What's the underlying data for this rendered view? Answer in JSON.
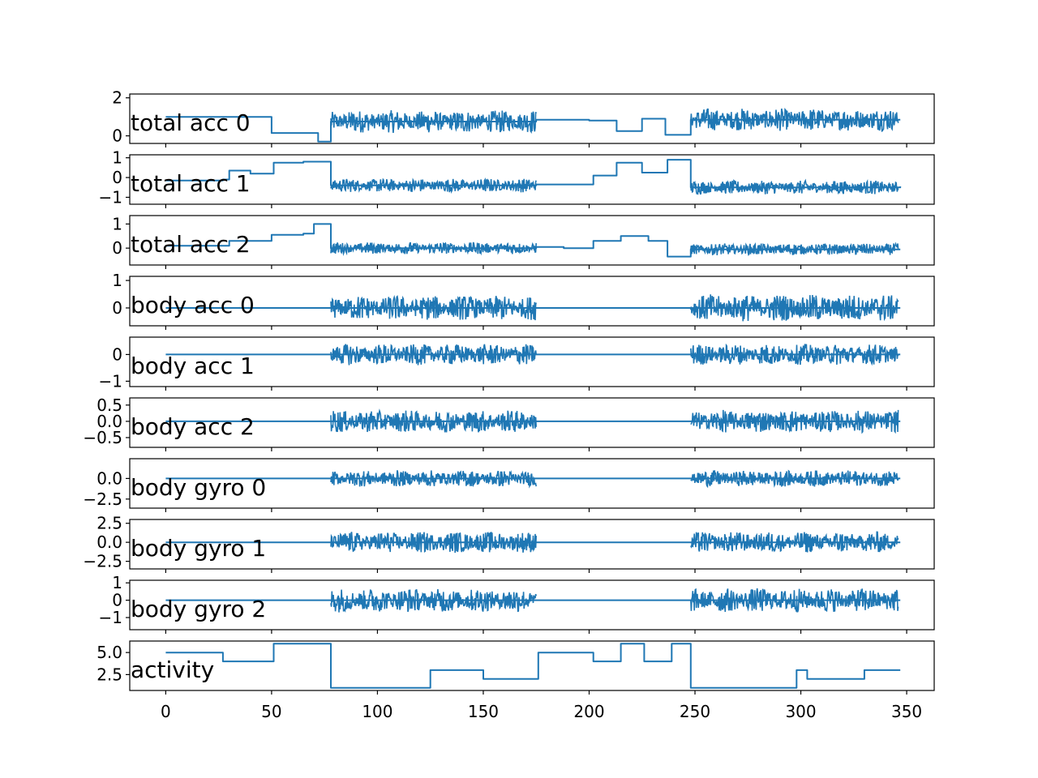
{
  "chart_data": {
    "type": "line",
    "title": "",
    "xlabel": "",
    "xlim": [
      -17,
      363
    ],
    "x_ticks": [
      0,
      50,
      100,
      150,
      200,
      250,
      300,
      350
    ],
    "x_tick_labels": [
      "0",
      "50",
      "100",
      "150",
      "200",
      "250",
      "300",
      "350"
    ],
    "color": "#1f77b4",
    "panels": [
      {
        "name": "total acc 0",
        "ylim": [
          -0.4,
          2.2
        ],
        "y_ticks": [
          0,
          2
        ],
        "y_tick_labels": [
          "0",
          "2"
        ],
        "levels": [
          [
            0,
            1.0
          ],
          [
            50,
            0.15
          ],
          [
            63,
            0.15
          ],
          [
            72,
            -0.3
          ],
          [
            78,
            0.75
          ],
          [
            175,
            0.85
          ],
          [
            200,
            0.8
          ],
          [
            213,
            0.25
          ],
          [
            225,
            0.9
          ],
          [
            236,
            0.05
          ],
          [
            248,
            0.85
          ],
          [
            347,
            0.85
          ]
        ],
        "noise_segments": [
          [
            78,
            175,
            0.6
          ],
          [
            248,
            346,
            0.6
          ]
        ]
      },
      {
        "name": "total acc 1",
        "ylim": [
          -1.35,
          1.15
        ],
        "y_ticks": [
          -1,
          0,
          1
        ],
        "y_tick_labels": [
          "−1",
          "0",
          "1"
        ],
        "levels": [
          [
            0,
            -0.15
          ],
          [
            27,
            -0.1
          ],
          [
            30,
            0.35
          ],
          [
            40,
            0.2
          ],
          [
            51,
            0.75
          ],
          [
            65,
            0.8
          ],
          [
            78,
            -0.4
          ],
          [
            175,
            -0.35
          ],
          [
            202,
            0.1
          ],
          [
            213,
            0.75
          ],
          [
            225,
            0.25
          ],
          [
            237,
            0.9
          ],
          [
            248,
            -0.5
          ],
          [
            347,
            -0.45
          ]
        ],
        "noise_segments": [
          [
            78,
            175,
            0.35
          ],
          [
            248,
            346,
            0.35
          ]
        ]
      },
      {
        "name": "total acc 2",
        "ylim": [
          -0.7,
          1.35
        ],
        "y_ticks": [
          0,
          1
        ],
        "y_tick_labels": [
          "0",
          "1"
        ],
        "levels": [
          [
            0,
            0.1
          ],
          [
            25,
            0.1
          ],
          [
            30,
            0.3
          ],
          [
            50,
            0.55
          ],
          [
            65,
            0.6
          ],
          [
            70,
            1.0
          ],
          [
            78,
            0.0
          ],
          [
            175,
            0.05
          ],
          [
            188,
            0.0
          ],
          [
            202,
            0.3
          ],
          [
            215,
            0.5
          ],
          [
            228,
            0.3
          ],
          [
            237,
            -0.35
          ],
          [
            248,
            -0.05
          ],
          [
            347,
            -0.05
          ]
        ],
        "noise_segments": [
          [
            78,
            175,
            0.25
          ],
          [
            248,
            346,
            0.25
          ]
        ]
      },
      {
        "name": "body acc 0",
        "ylim": [
          -0.65,
          1.15
        ],
        "y_ticks": [
          0,
          1
        ],
        "y_tick_labels": [
          "0",
          "1"
        ],
        "levels": [
          [
            0,
            0.0
          ],
          [
            347,
            0.0
          ]
        ],
        "noise_segments": [
          [
            78,
            175,
            0.45
          ],
          [
            248,
            346,
            0.5
          ]
        ]
      },
      {
        "name": "body acc 1",
        "ylim": [
          -1.2,
          0.65
        ],
        "y_ticks": [
          -1,
          0
        ],
        "y_tick_labels": [
          "−1",
          "0"
        ],
        "levels": [
          [
            0,
            0.0
          ],
          [
            347,
            0.0
          ]
        ],
        "noise_segments": [
          [
            78,
            175,
            0.4
          ],
          [
            248,
            346,
            0.4
          ]
        ]
      },
      {
        "name": "body acc 2",
        "ylim": [
          -0.8,
          0.72
        ],
        "y_ticks": [
          -0.5,
          0.0,
          0.5
        ],
        "y_tick_labels": [
          "−0.5",
          "0.0",
          "0.5"
        ],
        "levels": [
          [
            0,
            0.0
          ],
          [
            347,
            0.0
          ]
        ],
        "noise_segments": [
          [
            78,
            175,
            0.35
          ],
          [
            248,
            346,
            0.35
          ]
        ]
      },
      {
        "name": "body gyro 0",
        "ylim": [
          -3.6,
          2.4
        ],
        "y_ticks": [
          -2.5,
          0.0
        ],
        "y_tick_labels": [
          "−2.5",
          "0.0"
        ],
        "levels": [
          [
            0,
            0.0
          ],
          [
            347,
            0.0
          ]
        ],
        "noise_segments": [
          [
            78,
            175,
            1.0
          ],
          [
            248,
            346,
            1.0
          ]
        ]
      },
      {
        "name": "body gyro 1",
        "ylim": [
          -3.5,
          3.0
        ],
        "y_ticks": [
          -2.5,
          0.0,
          2.5
        ],
        "y_tick_labels": [
          "−2.5",
          "0.0",
          "2.5"
        ],
        "levels": [
          [
            0,
            0.0
          ],
          [
            347,
            0.0
          ]
        ],
        "noise_segments": [
          [
            78,
            175,
            1.4
          ],
          [
            248,
            346,
            1.4
          ]
        ]
      },
      {
        "name": "body gyro 2",
        "ylim": [
          -1.7,
          1.15
        ],
        "y_ticks": [
          -1,
          0,
          1
        ],
        "y_tick_labels": [
          "−1",
          "0",
          "1"
        ],
        "levels": [
          [
            0,
            0.0
          ],
          [
            347,
            0.0
          ]
        ],
        "noise_segments": [
          [
            78,
            175,
            0.7
          ],
          [
            248,
            346,
            0.7
          ]
        ]
      },
      {
        "name": "activity",
        "ylim": [
          0.7,
          6.3
        ],
        "y_ticks": [
          2.5,
          5.0
        ],
        "y_tick_labels": [
          "2.5",
          "5.0"
        ],
        "levels": [
          [
            0,
            5
          ],
          [
            27,
            4
          ],
          [
            51,
            6
          ],
          [
            78,
            1
          ],
          [
            125,
            3
          ],
          [
            150,
            2
          ],
          [
            176,
            5
          ],
          [
            202,
            4
          ],
          [
            215,
            6
          ],
          [
            226,
            4
          ],
          [
            239,
            6
          ],
          [
            248,
            1
          ],
          [
            298,
            3
          ],
          [
            303,
            2
          ],
          [
            330,
            3
          ],
          [
            347,
            3
          ]
        ],
        "noise_segments": []
      }
    ]
  }
}
